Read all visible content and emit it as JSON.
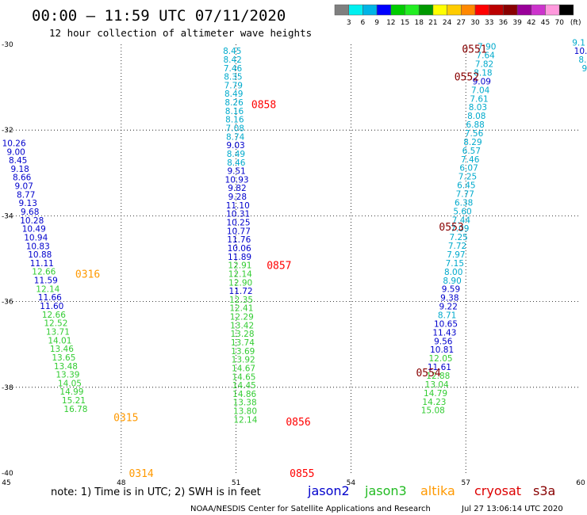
{
  "header": {
    "title": "00:00 – 11:59 UTC 07/11/2020",
    "subtitle": "12 hour collection of altimeter wave heights"
  },
  "colorbar": {
    "ticks": [
      "3",
      "6",
      "9",
      "12",
      "15",
      "18",
      "21",
      "24",
      "27",
      "30",
      "33",
      "36",
      "39",
      "42",
      "45",
      "70"
    ],
    "unit": "(ft)",
    "colors": [
      "#7f7f7f",
      "#00f0f0",
      "#00b4e6",
      "#0000ff",
      "#00cc00",
      "#22ee22",
      "#009900",
      "#ffff00",
      "#ffcc00",
      "#ff8800",
      "#ff0000",
      "#bb0000",
      "#880000",
      "#990099",
      "#cc33cc",
      "#ff99dd",
      "#000000"
    ]
  },
  "footer": {
    "note": "note:  1)  Time is in UTC;  2)  SWH is in feet",
    "credit": "NOAA/NESDIS Center for Satellite Applications and Research",
    "timestamp": "Jul 27 13:06:14 UTC 2020"
  },
  "legend": [
    {
      "name": "jason2",
      "color": "#0000cc"
    },
    {
      "name": "jason3",
      "color": "#22bb22"
    },
    {
      "name": "altika",
      "color": "#ff9900"
    },
    {
      "name": "cryosat",
      "color": "#dd0000"
    },
    {
      "name": "s3a",
      "color": "#880000"
    }
  ],
  "chart_data": {
    "type": "scatter",
    "xlim": [
      45,
      60
    ],
    "ylim": [
      -40,
      -30
    ],
    "x_ticks": [
      "45",
      "48",
      "51",
      "54",
      "57",
      "60"
    ],
    "y_ticks": [
      "-30",
      "-32",
      "-34",
      "-36",
      "-38",
      "-40"
    ],
    "grid": true,
    "colors": {
      "blue": "#0000cc",
      "cyan": "#00aacc",
      "green": "#33cc33",
      "red": "#ff0000",
      "orange": "#ff9900",
      "darkred": "#880000"
    },
    "passes": [
      {
        "label": "0316",
        "x": 46.8,
        "y": -35.35,
        "c": "orange"
      },
      {
        "label": "0315",
        "x": 47.8,
        "y": -38.7,
        "c": "orange"
      },
      {
        "label": "0314",
        "x": 48.2,
        "y": -40.0,
        "c": "orange"
      },
      {
        "label": "0858",
        "x": 51.4,
        "y": -31.4,
        "c": "red"
      },
      {
        "label": "0857",
        "x": 51.8,
        "y": -35.15,
        "c": "red"
      },
      {
        "label": "0856",
        "x": 52.3,
        "y": -38.8,
        "c": "red"
      },
      {
        "label": "0855",
        "x": 52.4,
        "y": -40.0,
        "c": "red"
      },
      {
        "label": "0551",
        "x": 56.9,
        "y": -30.1,
        "c": "darkred"
      },
      {
        "label": "0552",
        "x": 56.7,
        "y": -30.75,
        "c": "darkred"
      },
      {
        "label": "0553",
        "x": 56.3,
        "y": -34.25,
        "c": "darkred"
      },
      {
        "label": "0554",
        "x": 55.7,
        "y": -37.65,
        "c": "darkred"
      }
    ],
    "tracks": [
      {
        "x0": 45.2,
        "y0": -32.3,
        "dx": 0.052,
        "dy": 0.2,
        "values": [
          "10.26",
          "9.00",
          "8.45",
          "9.18",
          "8.66",
          "9.07",
          "8.77",
          "9.13",
          "9.68",
          "10.28",
          "10.49",
          "10.94",
          "10.83",
          "10.88",
          "11.11",
          "12.66",
          "11.59",
          "12.14",
          "11.66",
          "11.60",
          "12.66",
          "12.52",
          "13.71",
          "14.01",
          "13.46",
          "13.65",
          "13.48",
          "13.39",
          "14.05",
          "14.99",
          "15.21",
          "16.78"
        ],
        "colors": [
          "blue",
          "blue",
          "blue",
          "blue",
          "blue",
          "blue",
          "blue",
          "blue",
          "blue",
          "blue",
          "blue",
          "blue",
          "blue",
          "blue",
          "blue",
          "green",
          "blue",
          "green",
          "blue",
          "blue",
          "green",
          "green",
          "green",
          "green",
          "green",
          "green",
          "green",
          "green",
          "green",
          "green",
          "green",
          "green"
        ]
      },
      {
        "x0": 50.9,
        "y0": -30.15,
        "dx": 0.008,
        "dy": 0.2,
        "values": [
          "8.45",
          "8.42",
          "7.46",
          "8.35",
          "7.79",
          "8.49",
          "8.26",
          "8.16",
          "8.16",
          "7.08",
          "8.74",
          "9.03",
          "8.49",
          "8.46",
          "9.51",
          "10.93",
          "9.82",
          "9.28",
          "11.10",
          "10.31",
          "10.25",
          "10.77",
          "11.76",
          "10.06",
          "11.89",
          "12.91",
          "12.14",
          "12.90",
          "11.72",
          "12.35",
          "12.41",
          "12.29",
          "13.42",
          "13.28",
          "13.74",
          "13.69",
          "13.92",
          "14.67",
          "14.65",
          "14.45",
          "14.86",
          "13.38",
          "13.80",
          "12.14"
        ],
        "colors": [
          "cyan",
          "cyan",
          "cyan",
          "cyan",
          "cyan",
          "cyan",
          "cyan",
          "cyan",
          "cyan",
          "cyan",
          "cyan",
          "blue",
          "cyan",
          "cyan",
          "blue",
          "blue",
          "blue",
          "blue",
          "blue",
          "blue",
          "blue",
          "blue",
          "blue",
          "blue",
          "blue",
          "green",
          "green",
          "green",
          "blue",
          "green",
          "green",
          "green",
          "green",
          "green",
          "green",
          "green",
          "green",
          "green",
          "green",
          "green",
          "green",
          "green",
          "green",
          "green"
        ]
      },
      {
        "x0": 57.55,
        "y0": -30.05,
        "dx": -0.0335,
        "dy": 0.202,
        "values": [
          "7.90",
          "7.64",
          "7.82",
          "8.18",
          "9.09",
          "7.04",
          "7.61",
          "8.03",
          "8.08",
          "6.88",
          "7.56",
          "8.29",
          "6.57",
          "7.46",
          "6.07",
          "7.25",
          "6.45",
          "7.77",
          "6.38",
          "5.60",
          "7.44",
          "7.09",
          "7.25",
          "7.72",
          "7.97",
          "7.15",
          "8.00",
          "8.90",
          "9.59",
          "9.38",
          "9.22",
          "8.71",
          "10.65",
          "11.43",
          "9.56",
          "10.81",
          "12.05",
          "11.61",
          "12.88",
          "13.04",
          "14.79",
          "14.23",
          "15.08"
        ],
        "colors": [
          "cyan",
          "cyan",
          "cyan",
          "cyan",
          "blue",
          "cyan",
          "cyan",
          "cyan",
          "cyan",
          "cyan",
          "cyan",
          "cyan",
          "cyan",
          "cyan",
          "cyan",
          "cyan",
          "cyan",
          "cyan",
          "cyan",
          "cyan",
          "cyan",
          "cyan",
          "cyan",
          "cyan",
          "cyan",
          "cyan",
          "cyan",
          "cyan",
          "blue",
          "blue",
          "blue",
          "cyan",
          "blue",
          "blue",
          "blue",
          "blue",
          "green",
          "blue",
          "green",
          "green",
          "green",
          "green",
          "green"
        ]
      },
      {
        "x0": 59.95,
        "y0": -29.95,
        "dx": 0.05,
        "dy": 0.2,
        "values": [
          "9.1",
          "10.",
          "8.",
          "9"
        ],
        "colors": [
          "cyan",
          "blue",
          "cyan",
          "cyan"
        ]
      }
    ]
  }
}
